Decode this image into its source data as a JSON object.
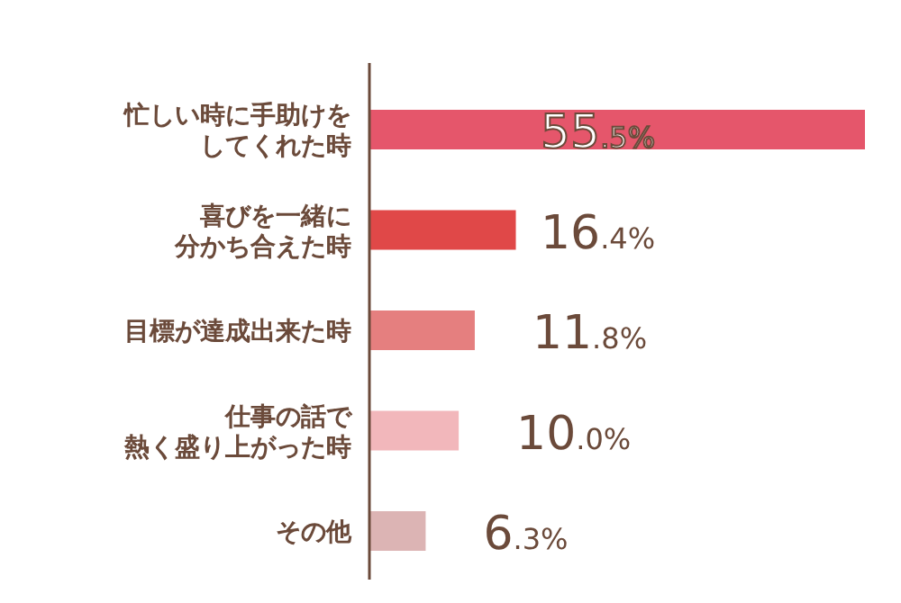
{
  "chart_data": {
    "type": "bar",
    "orientation": "horizontal",
    "categories": [
      "忙しい時に手助けをしてくれた時",
      "喜びを一緒に分かち合えた時",
      "目標が達成出来た時",
      "仕事の話で熱く盛り上がった時",
      "その他"
    ],
    "values": [
      55.5,
      16.4,
      11.8,
      10.0,
      6.3
    ],
    "colors": [
      "#e5566b",
      "#e04848",
      "#e57f7f",
      "#f2b7bb",
      "#dcb4b4"
    ],
    "value_labels": [
      "55.5%",
      "16.4%",
      "11.8%",
      "10.0%",
      "6.3%"
    ]
  }
}
